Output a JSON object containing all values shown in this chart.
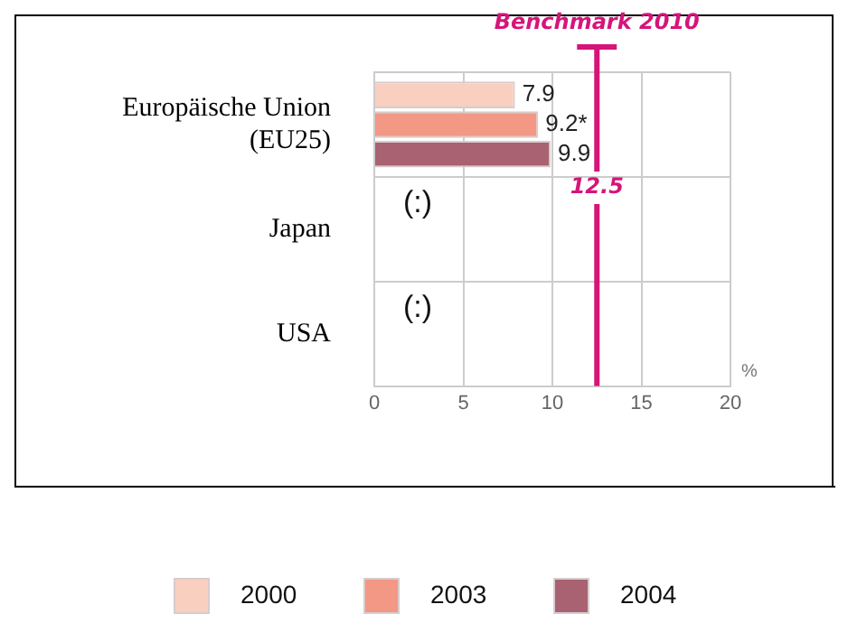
{
  "chart_data": {
    "type": "bar",
    "orientation": "horizontal",
    "categories": [
      "Europäische Union\n(EU25)",
      "Japan",
      "USA"
    ],
    "series": [
      {
        "name": "2000",
        "color": "#f9cfc0",
        "values": [
          7.9,
          null,
          null
        ],
        "value_labels": [
          "7.9",
          null,
          null
        ]
      },
      {
        "name": "2003",
        "color": "#f29884",
        "values": [
          9.2,
          null,
          null
        ],
        "value_labels": [
          "9.2*",
          null,
          null
        ]
      },
      {
        "name": "2004",
        "color": "#a86272",
        "values": [
          9.9,
          null,
          null
        ],
        "value_labels": [
          "9.9",
          null,
          null
        ]
      }
    ],
    "xlim": [
      0,
      20
    ],
    "xticks": [
      0,
      5,
      10,
      15,
      20
    ],
    "xlabel": "%",
    "ref_lines": [
      {
        "axis": "x",
        "value": 12.5,
        "label": "Benchmark 2010",
        "color": "#d6147a"
      }
    ],
    "annotations": [
      "12.5",
      "(:)",
      "(:)"
    ],
    "grid": true,
    "legend": "bottom"
  }
}
